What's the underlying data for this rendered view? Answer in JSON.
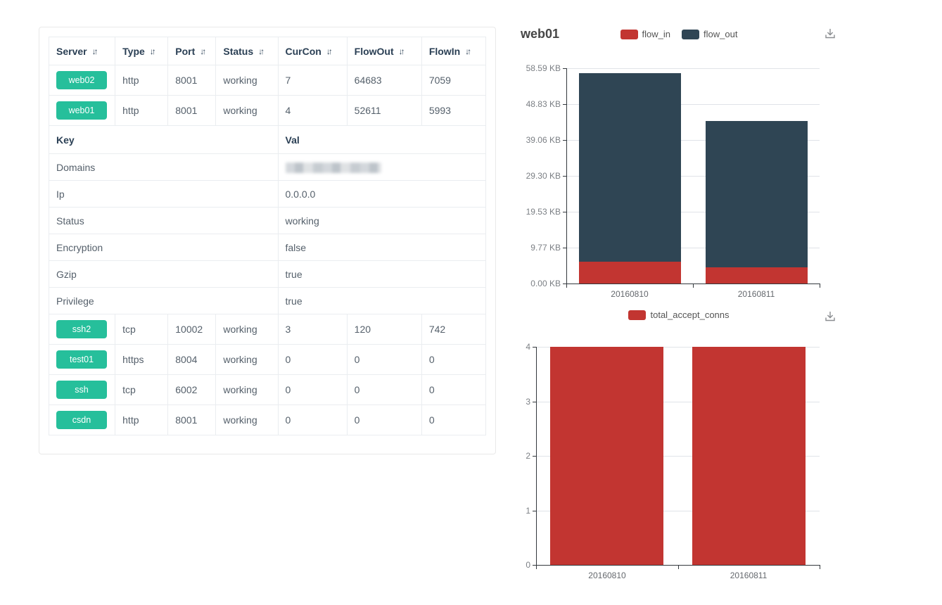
{
  "icons": {
    "sort": "↓↑"
  },
  "colors": {
    "badge": "#26bf9b",
    "flow_in": "#c23531",
    "flow_out": "#2f4554",
    "axis": "#33383d",
    "grid": "#e0e3e8"
  },
  "table": {
    "columns": [
      "Server",
      "Type",
      "Port",
      "Status",
      "CurCon",
      "FlowOut",
      "FlowIn"
    ],
    "server_rows_top": [
      {
        "server": "web02",
        "cells": [
          "http",
          "8001",
          "working",
          "7",
          "64683",
          "7059"
        ]
      },
      {
        "server": "web01",
        "cells": [
          "http",
          "8001",
          "working",
          "4",
          "52611",
          "5993"
        ]
      }
    ],
    "detail_header": {
      "key": "Key",
      "val": "Val"
    },
    "detail_rows": [
      {
        "key": "Domains",
        "val": "",
        "redacted": true
      },
      {
        "key": "Ip",
        "val": "0.0.0.0"
      },
      {
        "key": "Status",
        "val": "working"
      },
      {
        "key": "Encryption",
        "val": "false"
      },
      {
        "key": "Gzip",
        "val": "true"
      },
      {
        "key": "Privilege",
        "val": "true"
      }
    ],
    "server_rows_bottom": [
      {
        "server": "ssh2",
        "cells": [
          "tcp",
          "10002",
          "working",
          "3",
          "120",
          "742"
        ]
      },
      {
        "server": "test01",
        "cells": [
          "https",
          "8004",
          "working",
          "0",
          "0",
          "0"
        ]
      },
      {
        "server": "ssh",
        "cells": [
          "tcp",
          "6002",
          "working",
          "0",
          "0",
          "0"
        ]
      },
      {
        "server": "csdn",
        "cells": [
          "http",
          "8001",
          "working",
          "0",
          "0",
          "0"
        ]
      }
    ]
  },
  "chart_data": [
    {
      "type": "bar",
      "stacked": true,
      "title": "web01",
      "categories": [
        "20160810",
        "20160811"
      ],
      "series": [
        {
          "name": "flow_in",
          "color": "#c23531",
          "values": [
            5.85,
            4.4
          ]
        },
        {
          "name": "flow_out",
          "color": "#2f4554",
          "values": [
            51.4,
            39.8
          ]
        }
      ],
      "value_unit": "KB",
      "y_ticks": [
        "0.00 KB",
        "9.77 KB",
        "19.53 KB",
        "29.30 KB",
        "39.06 KB",
        "48.83 KB",
        "58.59 KB"
      ],
      "y_tick_values": [
        0,
        9.77,
        19.53,
        29.3,
        39.06,
        48.83,
        58.59
      ],
      "ylim": [
        0,
        58.59
      ],
      "legend": [
        "flow_in",
        "flow_out"
      ],
      "legend_position": "top-center",
      "grid": true,
      "toolbox": [
        "save-as-image"
      ]
    },
    {
      "type": "bar",
      "stacked": false,
      "title": "",
      "categories": [
        "20160810",
        "20160811"
      ],
      "series": [
        {
          "name": "total_accept_conns",
          "color": "#c23531",
          "values": [
            4,
            4
          ]
        }
      ],
      "value_unit": "",
      "y_ticks": [
        "0",
        "1",
        "2",
        "3",
        "4"
      ],
      "y_tick_values": [
        0,
        1,
        2,
        3,
        4
      ],
      "ylim": [
        0,
        4
      ],
      "legend": [
        "total_accept_conns"
      ],
      "legend_position": "top-center",
      "grid": true,
      "toolbox": [
        "save-as-image"
      ]
    }
  ]
}
